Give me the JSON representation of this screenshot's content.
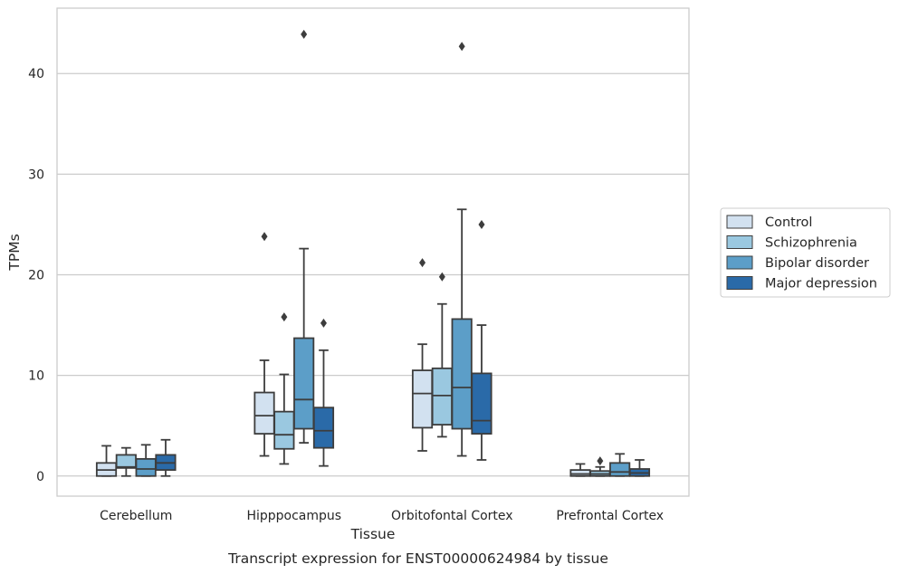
{
  "chart_data": {
    "type": "box",
    "title": "",
    "caption": "Transcript expression for ENST00000624984 by tissue",
    "xlabel": "Tissue",
    "ylabel": "TPMs",
    "ylim": [
      -2,
      46.5
    ],
    "yticks": [
      0,
      10,
      20,
      30,
      40
    ],
    "grid": "horizontal",
    "legend_position": "right",
    "categories": [
      "Cerebellum",
      "Hipppocampus",
      "Orbitofontal Cortex",
      "Prefrontal Cortex"
    ],
    "series": [
      {
        "name": "Control",
        "color": "#d2e1f0",
        "boxes": [
          {
            "whislo": 0.0,
            "q1": 0.0,
            "med": 0.6,
            "q3": 1.3,
            "whishi": 3.0,
            "fliers": []
          },
          {
            "whislo": 2.0,
            "q1": 4.2,
            "med": 6.0,
            "q3": 8.3,
            "whishi": 11.5,
            "fliers": [
              23.8
            ]
          },
          {
            "whislo": 2.5,
            "q1": 4.8,
            "med": 8.2,
            "q3": 10.5,
            "whishi": 13.1,
            "fliers": [
              21.2
            ]
          },
          {
            "whislo": 0.0,
            "q1": 0.0,
            "med": 0.2,
            "q3": 0.6,
            "whishi": 1.2,
            "fliers": []
          }
        ]
      },
      {
        "name": "Schizophrenia",
        "color": "#9ac8e0",
        "boxes": [
          {
            "whislo": 0.0,
            "q1": 0.8,
            "med": 0.9,
            "q3": 2.1,
            "whishi": 2.8,
            "fliers": []
          },
          {
            "whislo": 1.2,
            "q1": 2.7,
            "med": 4.1,
            "q3": 6.4,
            "whishi": 10.1,
            "fliers": [
              15.8
            ]
          },
          {
            "whislo": 3.9,
            "q1": 5.1,
            "med": 8.0,
            "q3": 10.7,
            "whishi": 17.1,
            "fliers": [
              19.8
            ]
          },
          {
            "whislo": 0.0,
            "q1": 0.0,
            "med": 0.2,
            "q3": 0.5,
            "whishi": 0.9,
            "fliers": [
              1.5
            ]
          }
        ]
      },
      {
        "name": "Bipolar disorder",
        "color": "#5c9ec8",
        "boxes": [
          {
            "whislo": 0.0,
            "q1": 0.0,
            "med": 0.7,
            "q3": 1.7,
            "whishi": 3.1,
            "fliers": []
          },
          {
            "whislo": 3.3,
            "q1": 4.7,
            "med": 7.6,
            "q3": 13.7,
            "whishi": 22.6,
            "fliers": [
              43.9
            ]
          },
          {
            "whislo": 2.0,
            "q1": 4.7,
            "med": 8.8,
            "q3": 15.6,
            "whishi": 26.5,
            "fliers": [
              42.7
            ]
          },
          {
            "whislo": 0.0,
            "q1": 0.0,
            "med": 0.4,
            "q3": 1.3,
            "whishi": 2.2,
            "fliers": []
          }
        ]
      },
      {
        "name": "Major depression",
        "color": "#2a6aa8",
        "boxes": [
          {
            "whislo": 0.0,
            "q1": 0.6,
            "med": 1.3,
            "q3": 2.1,
            "whishi": 3.6,
            "fliers": []
          },
          {
            "whislo": 1.0,
            "q1": 2.8,
            "med": 4.5,
            "q3": 6.8,
            "whishi": 12.5,
            "fliers": [
              15.2
            ]
          },
          {
            "whislo": 1.6,
            "q1": 4.2,
            "med": 5.5,
            "q3": 10.2,
            "whishi": 15.0,
            "fliers": [
              25.0
            ]
          },
          {
            "whislo": 0.0,
            "q1": 0.0,
            "med": 0.3,
            "q3": 0.7,
            "whishi": 1.6,
            "fliers": []
          }
        ]
      }
    ]
  }
}
